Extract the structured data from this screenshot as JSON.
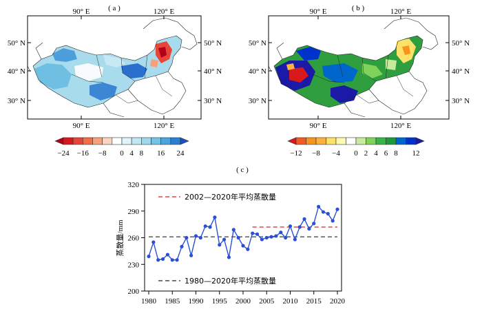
{
  "chart_data": [
    {
      "type": "heatmap",
      "panel_label": "( a )",
      "x_ticks": [
        "90° E",
        "120° E"
      ],
      "y_ticks": [
        "50° N",
        "40° N",
        "30° N"
      ],
      "colorbar": {
        "tick_labels": [
          "−24",
          "−16",
          "−8",
          "0",
          "4",
          "8",
          "16",
          "24"
        ],
        "colors": [
          "#b3001b",
          "#d7191c",
          "#e8443a",
          "#f46d43",
          "#f7a07a",
          "#fbd3c0",
          "#ffffff",
          "#e0f3f8",
          "#c2e7f2",
          "#9fd8ea",
          "#74c3e4",
          "#4aa5dc",
          "#2b7fd0",
          "#1f4fc6"
        ]
      }
    },
    {
      "type": "heatmap",
      "panel_label": "( b )",
      "x_ticks": [
        "90° E",
        "120° E"
      ],
      "y_ticks": [
        "50° N",
        "40° N",
        "30° N"
      ],
      "colorbar": {
        "tick_labels": [
          "−12",
          "−8",
          "−4",
          "0",
          "2",
          "4",
          "6",
          "8",
          "12"
        ],
        "colors": [
          "#d7191c",
          "#f15a24",
          "#f7941d",
          "#fbb040",
          "#fde26a",
          "#fff9b0",
          "#ffffff",
          "#c7eb9c",
          "#7fd35b",
          "#38b44a",
          "#1a9b3c",
          "#0066cc",
          "#0033cc",
          "#1a1aa6"
        ]
      }
    },
    {
      "type": "line",
      "panel_label": "( c )",
      "ylabel": "蒸散量/mm",
      "xlim": [
        1980,
        2020
      ],
      "ylim": [
        200,
        320
      ],
      "x_ticks": [
        "1980",
        "1985",
        "1990",
        "1995",
        "2000",
        "2005",
        "2010",
        "2015",
        "2020"
      ],
      "y_ticks": [
        "200",
        "230",
        "260",
        "290",
        "320"
      ],
      "x": [
        1980,
        1981,
        1982,
        1983,
        1984,
        1985,
        1986,
        1987,
        1988,
        1989,
        1990,
        1991,
        1992,
        1993,
        1994,
        1995,
        1996,
        1997,
        1998,
        1999,
        2000,
        2001,
        2002,
        2003,
        2004,
        2005,
        2006,
        2007,
        2008,
        2009,
        2010,
        2011,
        2012,
        2013,
        2014,
        2015,
        2016,
        2017,
        2018,
        2019,
        2020
      ],
      "series": [
        {
          "values": [
            239,
            255,
            235,
            236,
            241,
            235,
            235,
            250,
            260,
            240,
            262,
            260,
            273,
            272,
            283,
            252,
            258,
            238,
            269,
            260,
            251,
            247,
            265,
            264,
            258,
            260,
            261,
            262,
            266,
            260,
            273,
            258,
            272,
            281,
            270,
            276,
            295,
            289,
            287,
            279,
            292
          ],
          "color": "#2a4fd6"
        }
      ],
      "reference_lines": [
        {
          "label": "2002—2020年平均蒸散量",
          "y": 272,
          "x_start": 2002,
          "x_end": 2020,
          "color": "#e02020"
        },
        {
          "label": "1980—2020年平均蒸散量",
          "y": 261,
          "x_start": 1980,
          "x_end": 2020,
          "color": "#222222"
        }
      ]
    }
  ]
}
